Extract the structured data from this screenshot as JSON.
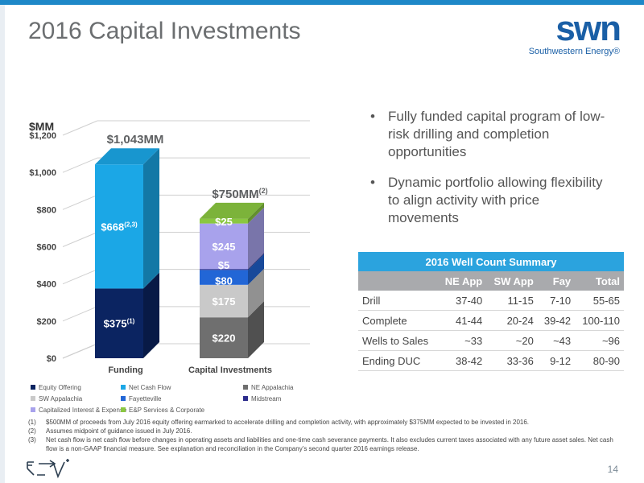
{
  "page": {
    "title": "2016 Capital Investments",
    "logo_word": "swn",
    "logo_sub": "Southwestern Energy®",
    "page_number": "14"
  },
  "chart_data": {
    "type": "bar",
    "stacked": true,
    "unit_label": "$MM",
    "ylim": [
      0,
      1200
    ],
    "yticks": [
      0,
      200,
      400,
      600,
      800,
      1000,
      1200
    ],
    "ytick_labels": [
      "$0",
      "$200",
      "$400",
      "$600",
      "$800",
      "$1,000",
      "$1,200"
    ],
    "grid": true,
    "legend_position": "bottom",
    "categories": [
      "Funding",
      "Capital Investments"
    ],
    "series": [
      {
        "name": "Equity Offering",
        "color": "#0b2461",
        "values": [
          375,
          0
        ]
      },
      {
        "name": "Net Cash Flow",
        "color": "#1ba7e6",
        "values": [
          668,
          0
        ]
      },
      {
        "name": "NE Appalachia",
        "color": "#6f6f6f",
        "values": [
          0,
          220
        ]
      },
      {
        "name": "SW Appalachia",
        "color": "#c9c9c9",
        "values": [
          0,
          175
        ]
      },
      {
        "name": "Fayetteville",
        "color": "#2266d6",
        "values": [
          0,
          80
        ]
      },
      {
        "name": "Midstream",
        "color": "#2c2c8c",
        "values": [
          0,
          5
        ]
      },
      {
        "name": "Capitalized Interest & Expense",
        "color": "#a8a2ec",
        "values": [
          0,
          245
        ]
      },
      {
        "name": "E&P Services & Corporate",
        "color": "#8ac740",
        "values": [
          0,
          25
        ]
      }
    ],
    "segment_labels": [
      {
        "category": 0,
        "series": 0,
        "text": "$375",
        "sup": "(1)"
      },
      {
        "category": 0,
        "series": 1,
        "text": "$668",
        "sup": "(2,3)"
      },
      {
        "category": 1,
        "series": 2,
        "text": "$220",
        "sup": ""
      },
      {
        "category": 1,
        "series": 3,
        "text": "$175",
        "sup": ""
      },
      {
        "category": 1,
        "series": 4,
        "text": "$80",
        "sup": ""
      },
      {
        "category": 1,
        "series": 5,
        "text": "$5",
        "sup": ""
      },
      {
        "category": 1,
        "series": 6,
        "text": "$245",
        "sup": ""
      },
      {
        "category": 1,
        "series": 7,
        "text": "$25",
        "sup": ""
      }
    ],
    "total_labels": [
      {
        "category": 0,
        "text": "$1,043MM",
        "sup": ""
      },
      {
        "category": 1,
        "text": "$750MM",
        "sup": "(2)"
      }
    ]
  },
  "bullets": [
    "Fully funded capital program of low-risk drilling and completion opportunities",
    "Dynamic portfolio allowing flexibility to align activity with price movements"
  ],
  "well_count_table": {
    "caption": "2016 Well Count Summary",
    "headers": [
      "",
      "NE App",
      "SW App",
      "Fay",
      "Total"
    ],
    "rows": [
      [
        "Drill",
        "37-40",
        "11-15",
        "7-10",
        "55-65"
      ],
      [
        "Complete",
        "41-44",
        "20-24",
        "39-42",
        "100-110"
      ],
      [
        "Wells to Sales",
        "~33",
        "~20",
        "~43",
        "~96"
      ],
      [
        "Ending DUC",
        "38-42",
        "33-36",
        "9-12",
        "80-90"
      ]
    ]
  },
  "footnotes": [
    {
      "num": "(1)",
      "text": "$500MM of proceeds from July 2016 equity offering earmarked to accelerate drilling and completion activity, with approximately $375MM expected to be invested in 2016."
    },
    {
      "num": "(2)",
      "text": "Assumes midpoint of guidance issued in July 2016."
    },
    {
      "num": "(3)",
      "text": "Net cash flow is net cash flow before changes in operating assets and liabilities and one-time cash severance payments.  It also excludes current taxes associated with any future asset sales.  Net cash flow is a non-GAAP financial measure. See explanation and reconciliation in the Company’s second quarter 2016 earnings release."
    }
  ]
}
